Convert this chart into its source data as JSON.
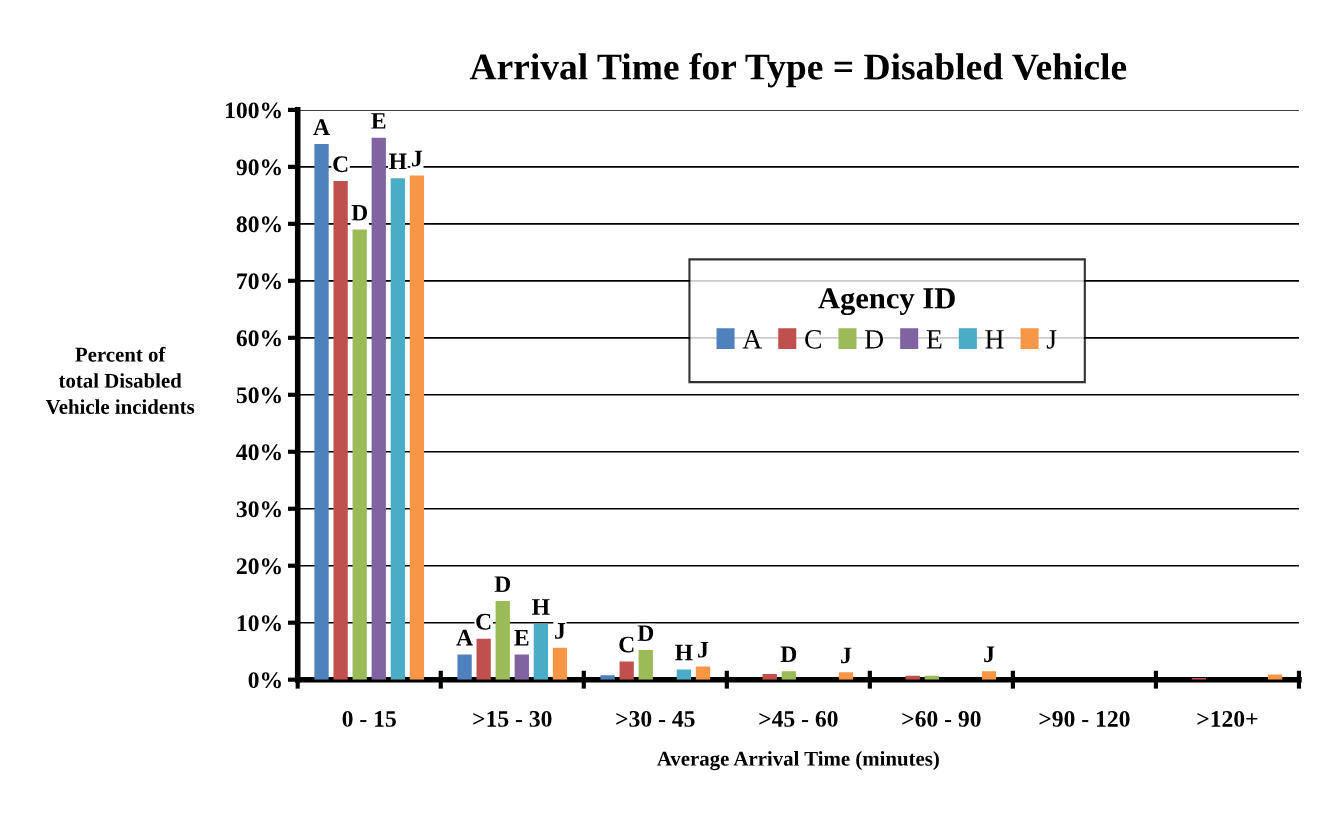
{
  "chart_data": {
    "type": "bar",
    "title": "Arrival Time for Type = Disabled Vehicle",
    "xlabel": "Average Arrival Time (minutes)",
    "ylabel": "Percent of\ntotal Disabled\nVehicle incidents",
    "legend_title": "Agency ID",
    "categories": [
      "0 - 15",
      ">15 - 30",
      ">30 - 45",
      ">45 - 60",
      ">60 - 90",
      ">90 - 120",
      ">120+"
    ],
    "series": [
      {
        "name": "A",
        "color": "#4f81bd",
        "values": [
          94,
          4.4,
          0.8,
          0,
          0,
          0,
          0
        ],
        "value_labels": [
          "A",
          "A",
          null,
          null,
          null,
          null,
          null
        ]
      },
      {
        "name": "C",
        "color": "#c0504d",
        "values": [
          87.5,
          7.2,
          3.2,
          1.0,
          0.7,
          0,
          0.3
        ],
        "value_labels": [
          "C",
          "C",
          "C",
          null,
          null,
          null,
          null
        ]
      },
      {
        "name": "D",
        "color": "#9bbb59",
        "values": [
          79,
          13.8,
          5.2,
          1.5,
          0.7,
          0,
          0
        ],
        "value_labels": [
          "D",
          "D",
          "D",
          "D",
          null,
          null,
          null
        ]
      },
      {
        "name": "E",
        "color": "#8064a2",
        "values": [
          95.1,
          4.4,
          0,
          0,
          0,
          0,
          0
        ],
        "value_labels": [
          "E",
          "E",
          null,
          null,
          null,
          null,
          null
        ]
      },
      {
        "name": "H",
        "color": "#4bacc6",
        "values": [
          88,
          9.8,
          1.8,
          0,
          0,
          0,
          0
        ],
        "value_labels": [
          "H",
          "H",
          "H",
          null,
          null,
          null,
          null
        ]
      },
      {
        "name": "J",
        "color": "#f79646",
        "values": [
          88.5,
          5.6,
          2.3,
          1.3,
          1.5,
          0,
          0.9
        ],
        "value_labels": [
          "J",
          "J",
          "J",
          "J",
          "J",
          null,
          null
        ]
      }
    ],
    "ylim": [
      0,
      100
    ],
    "yticks": [
      {
        "value": 0,
        "label": "0%"
      },
      {
        "value": 10,
        "label": "10%"
      },
      {
        "value": 20,
        "label": "20%"
      },
      {
        "value": 30,
        "label": "30%"
      },
      {
        "value": 40,
        "label": "40%"
      },
      {
        "value": 50,
        "label": "50%"
      },
      {
        "value": 60,
        "label": "60%"
      },
      {
        "value": 70,
        "label": "70%"
      },
      {
        "value": 80,
        "label": "80%"
      },
      {
        "value": 90,
        "label": "90%"
      },
      {
        "value": 100,
        "label": "100%"
      }
    ],
    "grid": "y",
    "legend": "right"
  }
}
